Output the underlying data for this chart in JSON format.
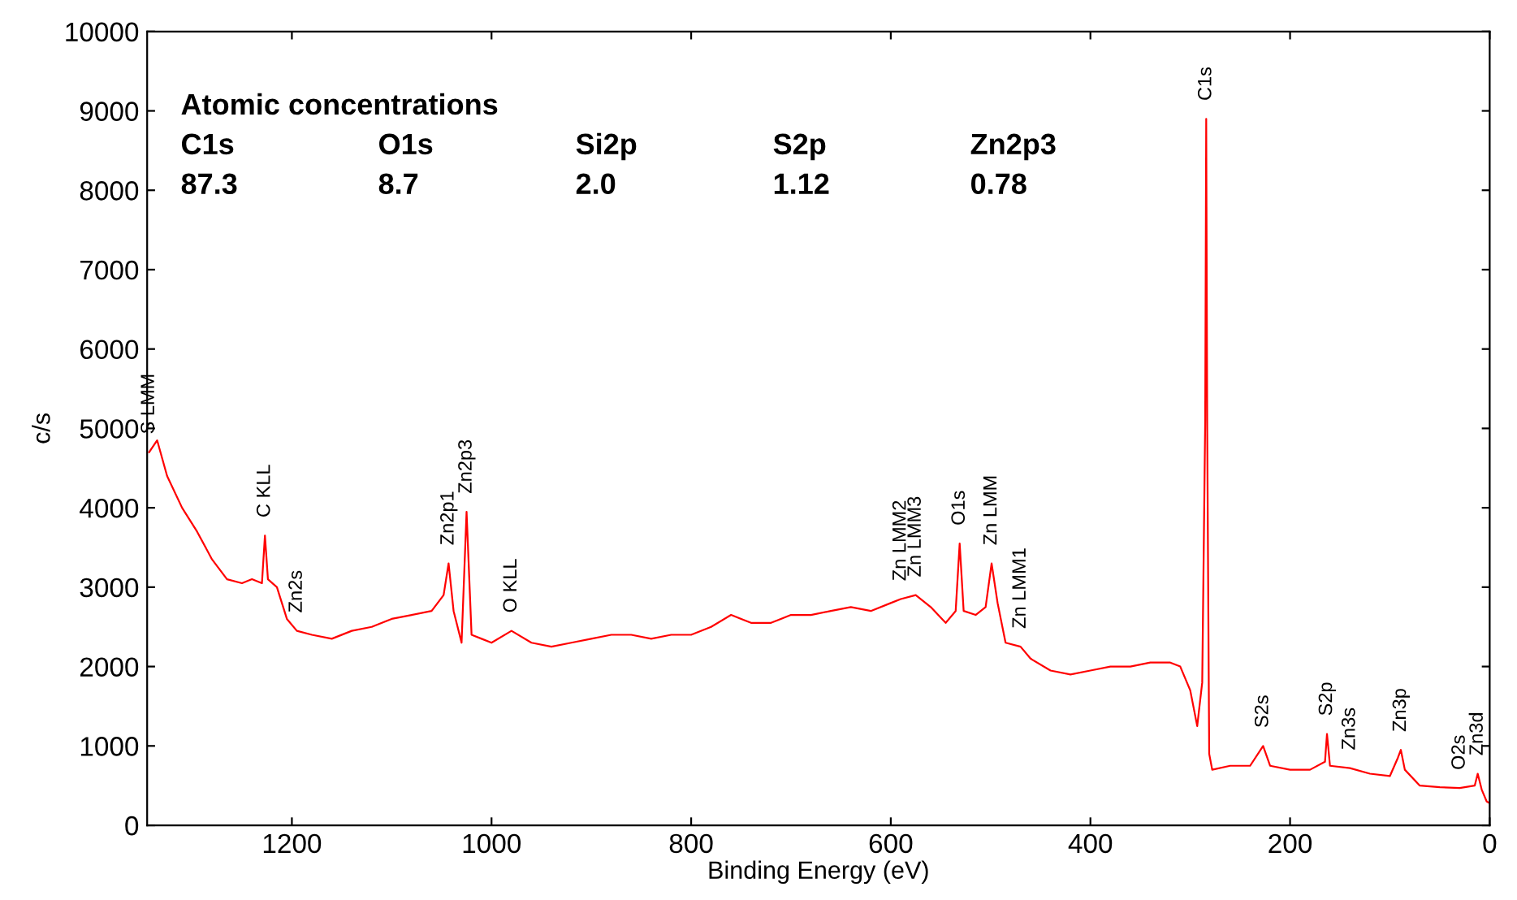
{
  "chart_data": {
    "type": "line",
    "xlabel": "Binding Energy (eV)",
    "ylabel": "c/s",
    "xlim": [
      1345,
      0
    ],
    "ylim": [
      0,
      10000
    ],
    "xticks": [
      0,
      200,
      400,
      600,
      800,
      1000,
      1200
    ],
    "yticks": [
      0,
      1000,
      2000,
      3000,
      4000,
      5000,
      6000,
      7000,
      8000,
      9000,
      10000
    ],
    "grid": false,
    "legend": false,
    "marker": "none",
    "line_style": "solid",
    "series": [
      {
        "color": "#ff0000",
        "x": [
          1343,
          1335,
          1325,
          1310,
          1295,
          1280,
          1265,
          1250,
          1240,
          1230,
          1227,
          1224,
          1215,
          1205,
          1195,
          1180,
          1160,
          1140,
          1120,
          1100,
          1080,
          1060,
          1048,
          1043,
          1038,
          1030,
          1025,
          1020,
          1010,
          1000,
          980,
          960,
          940,
          920,
          900,
          880,
          860,
          840,
          820,
          800,
          780,
          760,
          740,
          720,
          700,
          680,
          660,
          640,
          620,
          600,
          590,
          575,
          560,
          545,
          535,
          531,
          527,
          515,
          505,
          499,
          493,
          485,
          470,
          460,
          440,
          420,
          400,
          380,
          360,
          340,
          320,
          310,
          300,
          293,
          288,
          285,
          284,
          283,
          281,
          278,
          260,
          240,
          227,
          220,
          200,
          180,
          165,
          163,
          160,
          140,
          120,
          100,
          92,
          89,
          85,
          70,
          50,
          30,
          15,
          12,
          8,
          3,
          0
        ],
        "values": [
          4700,
          4850,
          4400,
          4000,
          3700,
          3350,
          3100,
          3050,
          3100,
          3050,
          3650,
          3100,
          3000,
          2600,
          2450,
          2400,
          2350,
          2450,
          2500,
          2600,
          2650,
          2700,
          2900,
          3300,
          2700,
          2300,
          3950,
          2400,
          2350,
          2300,
          2450,
          2300,
          2250,
          2300,
          2350,
          2400,
          2400,
          2350,
          2400,
          2400,
          2500,
          2650,
          2550,
          2550,
          2650,
          2650,
          2700,
          2750,
          2700,
          2800,
          2850,
          2900,
          2750,
          2550,
          2700,
          3550,
          2700,
          2650,
          2750,
          3300,
          2800,
          2300,
          2250,
          2100,
          1950,
          1900,
          1950,
          2000,
          2000,
          2050,
          2050,
          2000,
          1700,
          1250,
          1800,
          5100,
          8900,
          5000,
          900,
          700,
          750,
          750,
          1000,
          750,
          700,
          700,
          800,
          1150,
          750,
          720,
          650,
          620,
          850,
          950,
          700,
          500,
          480,
          470,
          500,
          650,
          450,
          300,
          280
        ]
      }
    ],
    "annotations": [
      "Atomic concentrations",
      "C1s",
      "O1s",
      "Si2p",
      "S2p",
      "Zn2p3",
      "87.3",
      "8.7",
      "2.0",
      "1.12",
      "0.78",
      {
        "text": "S LMM",
        "x": 1343,
        "y": 4700
      },
      {
        "text": "C KLL",
        "x": 1227,
        "y": 3650
      },
      {
        "text": "Zn2s",
        "x": 1195,
        "y": 2450
      },
      {
        "text": "Zn2p1",
        "x": 1043,
        "y": 3300
      },
      {
        "text": "Zn2p3",
        "x": 1025,
        "y": 3950
      },
      {
        "text": "O KLL",
        "x": 980,
        "y": 2450
      },
      {
        "text": "Zn LMM2",
        "x": 590,
        "y": 2850
      },
      {
        "text": "Zn LMM3",
        "x": 575,
        "y": 2900
      },
      {
        "text": "O1s",
        "x": 531,
        "y": 3550
      },
      {
        "text": "Zn LMM",
        "x": 499,
        "y": 3300
      },
      {
        "text": "Zn LMM1",
        "x": 470,
        "y": 2250
      },
      {
        "text": "C1s",
        "x": 284,
        "y": 8900
      },
      {
        "text": "S2s",
        "x": 227,
        "y": 1000
      },
      {
        "text": "S2p",
        "x": 163,
        "y": 1150
      },
      {
        "text": "Zn3s",
        "x": 140,
        "y": 720
      },
      {
        "text": "Zn3p",
        "x": 89,
        "y": 950
      },
      {
        "text": "O2s",
        "x": 30,
        "y": 470
      },
      {
        "text": "Zn3d",
        "x": 12,
        "y": 650
      }
    ]
  }
}
